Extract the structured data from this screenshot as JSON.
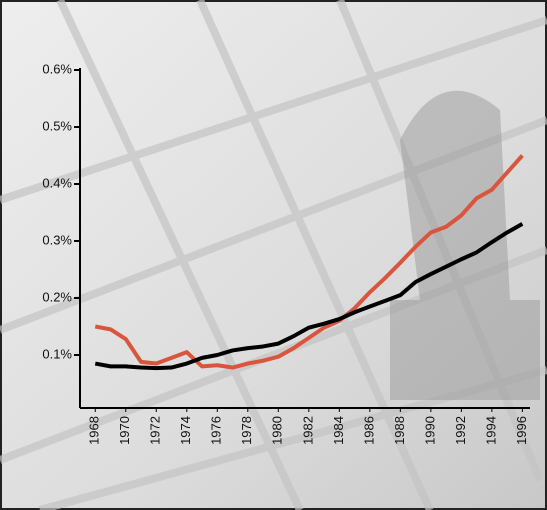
{
  "chart_data": {
    "type": "line",
    "x": [
      1968,
      1969,
      1970,
      1971,
      1972,
      1973,
      1974,
      1975,
      1976,
      1977,
      1978,
      1979,
      1980,
      1981,
      1982,
      1983,
      1984,
      1985,
      1986,
      1987,
      1988,
      1989,
      1990,
      1991,
      1992,
      1993,
      1994,
      1995,
      1996
    ],
    "series": [
      {
        "color": "#d9553d",
        "values": [
          0.15,
          0.145,
          0.128,
          0.088,
          0.085,
          0.095,
          0.105,
          0.08,
          0.082,
          0.078,
          0.085,
          0.09,
          0.097,
          0.112,
          0.13,
          0.148,
          0.16,
          0.182,
          0.21,
          0.235,
          0.262,
          0.29,
          0.315,
          0.325,
          0.345,
          0.375,
          0.39,
          0.42,
          0.45
        ]
      },
      {
        "color": "#000000",
        "values": [
          0.085,
          0.08,
          0.08,
          0.078,
          0.077,
          0.078,
          0.085,
          0.095,
          0.1,
          0.108,
          0.112,
          0.115,
          0.12,
          0.133,
          0.148,
          0.155,
          0.163,
          0.175,
          0.185,
          0.195,
          0.205,
          0.228,
          0.242,
          0.255,
          0.268,
          0.28,
          0.298,
          0.315,
          0.33
        ]
      }
    ],
    "xlim": [
      1967,
      1996.5
    ],
    "xticks": [
      1968,
      1970,
      1972,
      1974,
      1976,
      1978,
      1980,
      1982,
      1984,
      1986,
      1988,
      1990,
      1992,
      1994,
      1996
    ],
    "ylim": [
      0,
      0.6
    ],
    "yticks": [
      {
        "value": 0.1,
        "label": "0.1%"
      },
      {
        "value": 0.2,
        "label": "0.2%"
      },
      {
        "value": 0.3,
        "label": "0.3%"
      },
      {
        "value": 0.4,
        "label": "0.4%"
      },
      {
        "value": 0.5,
        "label": "0.5%"
      },
      {
        "value": 0.6,
        "label": "0.6%"
      }
    ]
  }
}
